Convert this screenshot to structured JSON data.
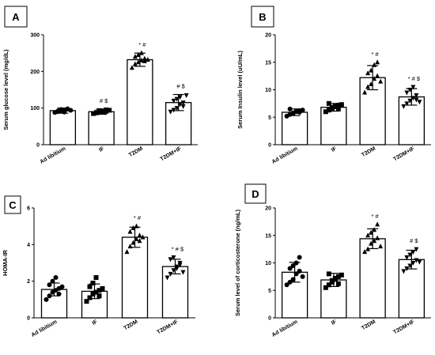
{
  "chart_data": [
    {
      "type": "bar",
      "panel": "A",
      "ylabel": "Serum glucose level (mg/dL)",
      "ylim": [
        0,
        300
      ],
      "yticks": [
        0,
        100,
        200,
        300
      ],
      "categories": [
        "Ad libitium",
        "IF",
        "T2DM",
        "T2DM+IF"
      ],
      "values": [
        93,
        90,
        232,
        115
      ],
      "errors": [
        7,
        7,
        18,
        22
      ],
      "significance": [
        "",
        "# $",
        "* #",
        "# $"
      ],
      "points": [
        [
          88,
          90,
          93,
          95,
          98,
          92,
          96,
          89,
          97,
          94
        ],
        [
          85,
          88,
          90,
          92,
          95,
          87,
          93,
          89,
          91,
          94
        ],
        [
          210,
          220,
          225,
          230,
          235,
          240,
          245,
          250,
          228,
          232
        ],
        [
          90,
          95,
          100,
          110,
          115,
          120,
          125,
          130,
          105,
          135
        ]
      ],
      "markers": [
        "circle",
        "square",
        "triangle-up",
        "triangle-down"
      ]
    },
    {
      "type": "bar",
      "panel": "B",
      "ylabel": "Serum Insulin level (uU/mL)",
      "ylim": [
        0,
        20
      ],
      "yticks": [
        0,
        5,
        10,
        15,
        20
      ],
      "categories": [
        "Ad libitium",
        "IF",
        "T2DM",
        "T2DM+IF"
      ],
      "values": [
        5.9,
        6.8,
        12.2,
        8.7
      ],
      "errors": [
        0.6,
        0.7,
        2.2,
        1.5
      ],
      "significance": [
        "",
        "",
        "* #",
        "* # $"
      ],
      "points": [
        [
          5.2,
          5.5,
          5.8,
          6.0,
          6.2,
          6.5,
          5.7,
          6.1,
          5.9,
          6.3
        ],
        [
          6.0,
          6.3,
          6.6,
          6.9,
          7.2,
          7.5,
          6.8,
          7.0,
          6.5,
          7.3
        ],
        [
          9.5,
          10.5,
          11.0,
          12.0,
          12.5,
          13.0,
          13.5,
          14.5,
          15.0,
          11.5
        ],
        [
          7.0,
          7.5,
          8.0,
          8.5,
          9.0,
          9.5,
          10.0,
          10.5,
          8.2,
          7.8
        ]
      ],
      "markers": [
        "circle",
        "square",
        "triangle-up",
        "triangle-down"
      ]
    },
    {
      "type": "bar",
      "panel": "C",
      "ylabel": "HOMA-IR",
      "ylim": [
        0,
        6
      ],
      "yticks": [
        0,
        2,
        4,
        6
      ],
      "categories": [
        "Ad libitium",
        "IF",
        "T2DM",
        "T2DM+IF"
      ],
      "values": [
        1.55,
        1.45,
        4.4,
        2.8
      ],
      "errors": [
        0.35,
        0.4,
        0.55,
        0.4
      ],
      "significance": [
        "",
        "",
        "* #",
        "* # $"
      ],
      "points": [
        [
          1.0,
          1.2,
          1.4,
          1.5,
          1.6,
          1.8,
          2.0,
          2.2,
          1.3,
          1.7
        ],
        [
          0.9,
          1.1,
          1.3,
          1.4,
          1.5,
          1.7,
          1.9,
          2.2,
          1.2,
          1.6
        ],
        [
          3.6,
          3.9,
          4.1,
          4.3,
          4.5,
          4.7,
          4.9,
          5.0,
          4.2,
          4.4
        ],
        [
          2.2,
          2.4,
          2.6,
          2.8,
          3.0,
          3.2,
          3.3,
          2.7,
          2.9,
          2.5
        ]
      ],
      "markers": [
        "circle",
        "square",
        "triangle-up",
        "triangle-down"
      ]
    },
    {
      "type": "bar",
      "panel": "D",
      "ylabel": "Serum level of corticosterone (ng/mL)",
      "ylim": [
        0,
        20
      ],
      "yticks": [
        0,
        5,
        10,
        15,
        20
      ],
      "categories": [
        "Ad libitium",
        "IF",
        "T2DM",
        "T2DM+IF"
      ],
      "values": [
        8.3,
        6.9,
        14.4,
        10.6
      ],
      "errors": [
        1.8,
        1.2,
        1.8,
        1.7
      ],
      "significance": [
        "",
        "",
        "* #",
        "# $"
      ],
      "points": [
        [
          6.0,
          6.5,
          7.0,
          8.0,
          8.5,
          9.0,
          9.5,
          10.0,
          11.0,
          7.5
        ],
        [
          5.5,
          6.0,
          6.5,
          7.0,
          7.5,
          8.0,
          6.8,
          7.2,
          6.2,
          7.8
        ],
        [
          12.0,
          12.5,
          13.5,
          14.0,
          14.5,
          15.0,
          15.5,
          16.0,
          17.0,
          13.0
        ],
        [
          8.5,
          9.0,
          9.5,
          10.0,
          10.5,
          11.0,
          11.5,
          12.0,
          12.5,
          10.2
        ]
      ],
      "markers": [
        "circle",
        "square",
        "triangle-up",
        "triangle-down"
      ]
    }
  ]
}
